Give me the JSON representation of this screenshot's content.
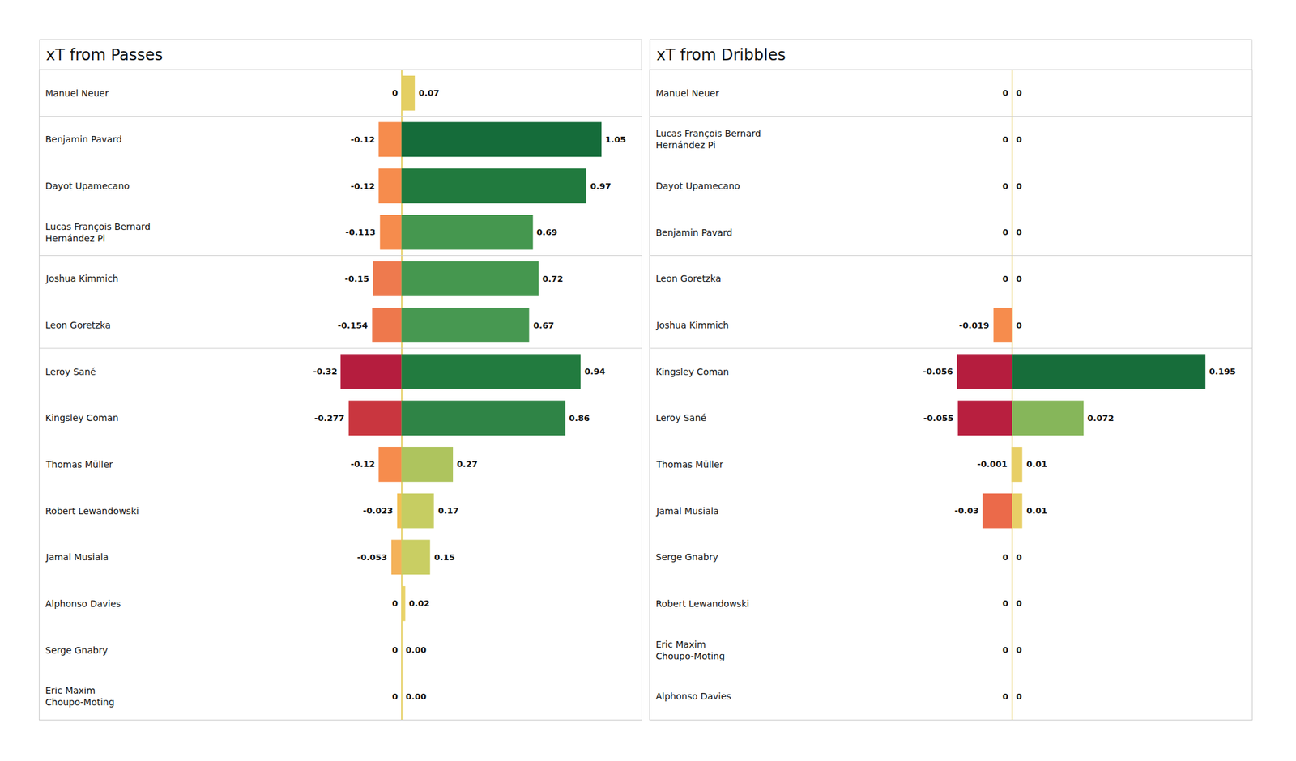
{
  "chart_data": [
    {
      "type": "bar",
      "orientation": "horizontal",
      "title": "xT from Passes",
      "categories": [
        "Manuel Neuer",
        "Benjamin Pavard",
        "Dayot Upamecano",
        "Lucas François Bernard\nHernández Pi",
        "Joshua Kimmich",
        "Leon Goretzka",
        "Leroy Sané",
        "Kingsley Coman",
        "Thomas Müller",
        "Robert Lewandowski",
        "Jamal Musiala",
        "Alphonso Davies",
        "Serge Gnabry",
        "Eric Maxim\nChoupo-Moting"
      ],
      "series": [
        {
          "values": [
            0,
            -0.12,
            -0.12,
            -0.113,
            -0.15,
            -0.154,
            -0.32,
            -0.277,
            -0.12,
            -0.023,
            -0.053,
            0,
            0,
            0
          ],
          "colors": [
            "#e6d068",
            "#f68c4d",
            "#f68c4d",
            "#f68c4d",
            "#ee7a4e",
            "#ee784c",
            "#b51d3e",
            "#c9363f",
            "#f68c4d",
            "#f2c056",
            "#f4b25a",
            "#e6d068",
            "#e6d068",
            "#e6d068"
          ]
        },
        {
          "values": [
            0.07,
            1.05,
            0.97,
            0.69,
            0.72,
            0.67,
            0.94,
            0.86,
            0.27,
            0.17,
            0.15,
            0.02,
            0,
            0
          ],
          "value_labels": [
            "0.07",
            "1.05",
            "0.97",
            "0.69",
            "0.72",
            "0.67",
            "0.94",
            "0.86",
            "0.27",
            "0.17",
            "0.15",
            "0.02",
            "0.00",
            "0.00"
          ],
          "colors": [
            "#e4cf63",
            "#156c3a",
            "#217a3e",
            "#45974f",
            "#45974f",
            "#479851",
            "#227b3f",
            "#2f8446",
            "#aec45e",
            "#c6cd62",
            "#c9ce63",
            "#e9d36a",
            "#ecd46a",
            "#ecd46a"
          ]
        }
      ],
      "xlim": [
        -1.9,
        1.26
      ],
      "tick_labels": false,
      "data_labels": true,
      "grid": false
    },
    {
      "type": "bar",
      "orientation": "horizontal",
      "title": "xT from Dribbles",
      "categories": [
        "Manuel Neuer",
        "Lucas François Bernard\nHernández Pi",
        "Dayot Upamecano",
        "Benjamin Pavard",
        "Leon Goretzka",
        "Joshua Kimmich",
        "Kingsley Coman",
        "Leroy Sané",
        "Thomas Müller",
        "Jamal Musiala",
        "Serge Gnabry",
        "Robert Lewandowski",
        "Eric Maxim\nChoupo-Moting",
        "Alphonso Davies"
      ],
      "series": [
        {
          "values": [
            0,
            0,
            0,
            0,
            0,
            -0.019,
            -0.056,
            -0.055,
            -0.001,
            -0.03,
            0,
            0,
            0,
            0
          ],
          "colors": [
            "#e6d068",
            "#e6d068",
            "#e6d068",
            "#e6d068",
            "#e6d068",
            "#f68c4d",
            "#b51d3e",
            "#b81f3f",
            "#e8d06a",
            "#eb6a4a",
            "#e6d068",
            "#e6d068",
            "#e6d068",
            "#e6d068"
          ]
        },
        {
          "values": [
            0,
            0,
            0,
            0,
            0,
            0,
            0.195,
            0.072,
            0.01,
            0.01,
            0,
            0,
            0,
            0
          ],
          "colors": [
            "#e6d068",
            "#e6d068",
            "#e6d068",
            "#e6d068",
            "#e6d068",
            "#e6d068",
            "#176d3a",
            "#86b65a",
            "#e8cf66",
            "#e8cf66",
            "#e6d068",
            "#e6d068",
            "#e6d068",
            "#e6d068"
          ]
        }
      ],
      "xlim": [
        -0.366,
        0.242
      ],
      "tick_labels": false,
      "data_labels": true,
      "grid": false
    }
  ]
}
